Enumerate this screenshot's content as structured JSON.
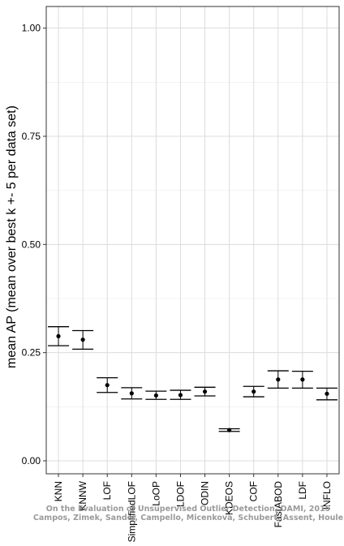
{
  "chart_data": {
    "type": "errorbar",
    "ylabel": "mean AP (mean over best k +- 5 per data set)",
    "xlabel": "",
    "ylim": [
      -0.03,
      1.05
    ],
    "yticks": [
      "0.00",
      "0.25",
      "0.50",
      "0.75",
      "1.00"
    ],
    "grid": true,
    "categories": [
      "KNN",
      "KNNW",
      "LOF",
      "SimplifiedLOF",
      "LoOP",
      "LDOF",
      "ODIN",
      "KDEOS",
      "COF",
      "FastABOD",
      "LDF",
      "INFLO"
    ],
    "series": [
      {
        "mean": [
          0.288,
          0.28,
          0.175,
          0.156,
          0.151,
          0.152,
          0.16,
          0.071,
          0.16,
          0.188,
          0.188,
          0.155
        ],
        "lower": [
          0.266,
          0.258,
          0.158,
          0.143,
          0.142,
          0.142,
          0.15,
          0.068,
          0.148,
          0.168,
          0.168,
          0.141
        ],
        "upper": [
          0.31,
          0.301,
          0.192,
          0.169,
          0.161,
          0.163,
          0.17,
          0.074,
          0.172,
          0.208,
          0.207,
          0.168
        ]
      }
    ]
  },
  "watermark": {
    "line1": "On the Evaluation of Unsupervised Outlier Detection, DAMI, 2015",
    "line2": "Campos, Zimek, Sander, Campello, Micenková, Schubert, Assent, Houle"
  }
}
